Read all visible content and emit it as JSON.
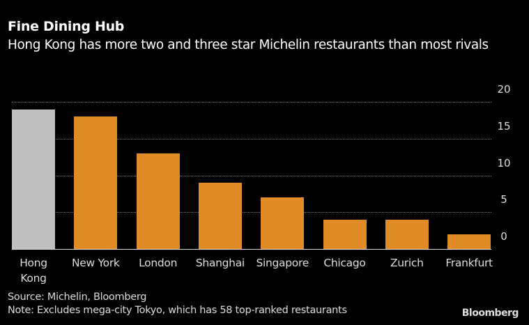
{
  "title": "Fine Dining Hub",
  "subtitle": "Hong Kong has more two and three star Michelin restaurants than most rivals",
  "source": "Source: Michelin, Bloomberg",
  "note": "Note: Excludes mega-city Tokyo, which has 58 top-ranked restaurants",
  "brand": "Bloomberg",
  "colors": {
    "highlight": "#c0c0c0",
    "bar": "#e08c26",
    "background": "#000000"
  },
  "chart_data": {
    "type": "bar",
    "title": "Fine Dining Hub",
    "subtitle": "Hong Kong has more two and three star Michelin restaurants than most rivals",
    "categories": [
      "Hong Kong",
      "New York",
      "London",
      "Shanghai",
      "Singapore",
      "Chicago",
      "Zurich",
      "Frankfurt"
    ],
    "values": [
      19,
      18,
      13,
      9,
      7,
      4,
      4,
      2
    ],
    "highlighted": "Hong Kong",
    "xlabel": "",
    "ylabel": "",
    "ylim": [
      0,
      20
    ],
    "yticks": [
      0,
      5,
      10,
      15,
      20
    ],
    "ytick_labels": [
      "0",
      "5",
      "10",
      "15",
      "20"
    ],
    "grid": true,
    "y_axis_position": "right",
    "legend": null
  }
}
